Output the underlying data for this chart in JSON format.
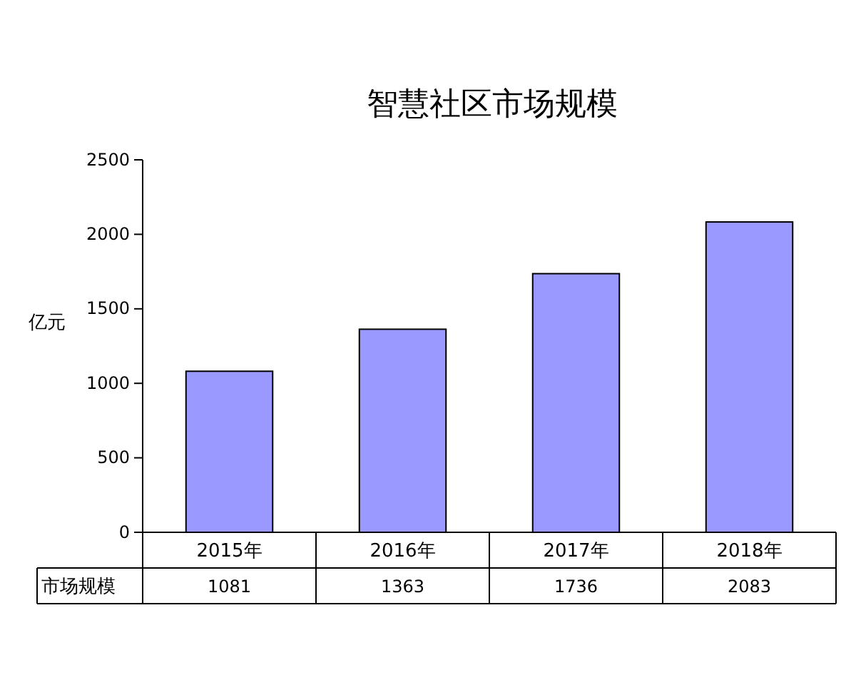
{
  "chart_data": {
    "type": "bar",
    "title": "智慧社区市场规模",
    "ylabel": "亿元",
    "categories": [
      "2015年",
      "2016年",
      "2017年",
      "2018年"
    ],
    "series": [
      {
        "name": "市场规模",
        "color": "#9999ff",
        "values": [
          1081,
          1363,
          1736,
          2083
        ]
      }
    ],
    "ylim": [
      0,
      2500
    ],
    "yticks": [
      0,
      500,
      1000,
      1500,
      2000,
      2500
    ],
    "grid": false,
    "legend": "bottom",
    "data_labels": true
  }
}
